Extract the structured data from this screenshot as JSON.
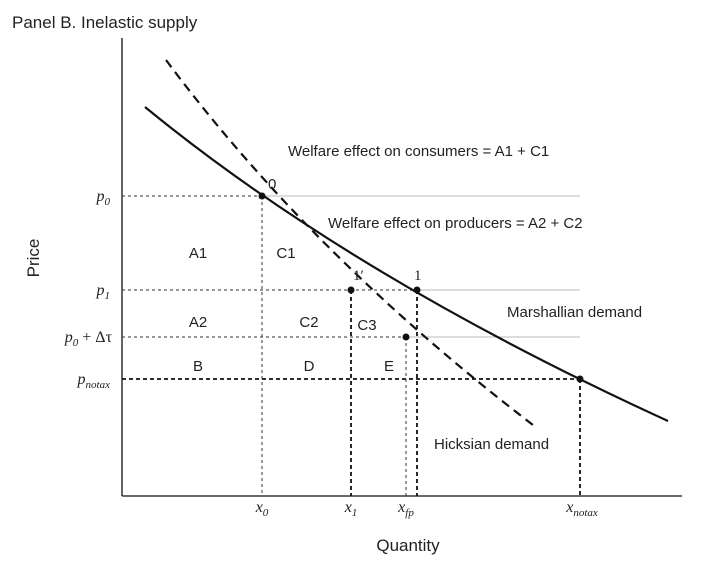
{
  "title": "Panel B. Inelastic supply",
  "axes": {
    "y_title": "Price",
    "x_title": "Quantity"
  },
  "price_labels": {
    "p0_base": "p",
    "p0_sub": "0",
    "p1_base": "p",
    "p1_sub": "1",
    "pdt_base": "p",
    "pdt_sub": "0",
    "pdt_rest": " + Δτ",
    "pnotax_base": "p",
    "pnotax_sub": "notax"
  },
  "quantity_labels": {
    "x0_base": "x",
    "x0_sub": "0",
    "x1_base": "x",
    "x1_sub": "1",
    "xfp_base": "x",
    "xfp_sub": "fp",
    "xnotax_base": "x",
    "xnotax_sub": "notax"
  },
  "points": {
    "zero": "0",
    "one_prime": "1′",
    "one": "1"
  },
  "regions": {
    "a1": "A1",
    "c1": "C1",
    "a2": "A2",
    "c2": "C2",
    "c3": "C3",
    "b": "B",
    "d": "D",
    "e": "E"
  },
  "annotations": {
    "consumers": "Welfare effect on consumers = A1 + C1",
    "producers": "Welfare effect on producers = A2 + C2",
    "marshallian": "Marshallian demand",
    "hicksian": "Hicksian demand"
  },
  "colors": {
    "curve": "#111111",
    "guide": "#555555",
    "gridline": "#bbbbbb"
  }
}
